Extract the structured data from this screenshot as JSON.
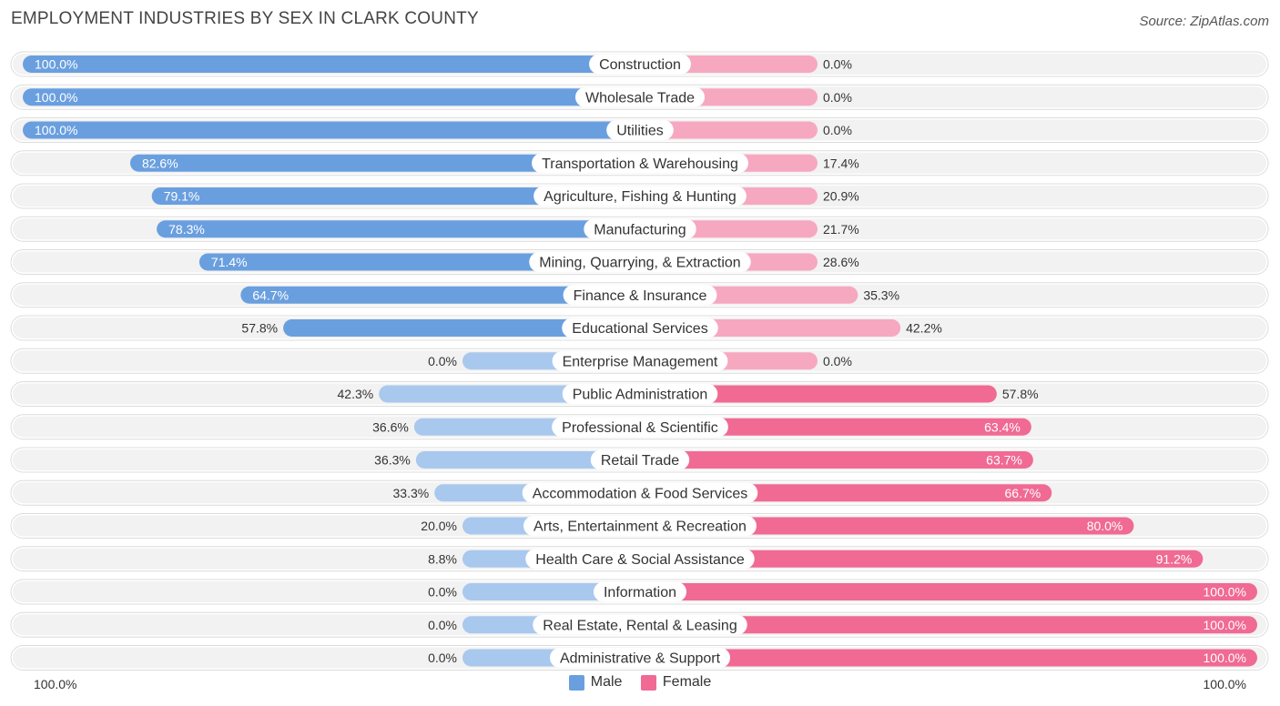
{
  "title": "EMPLOYMENT INDUSTRIES BY SEX IN CLARK COUNTY",
  "source": "Source: ZipAtlas.com",
  "colors": {
    "male_strong": "#6a9fdf",
    "male_light": "#a9c8ee",
    "female_strong": "#f06a94",
    "female_light": "#f7a8c1",
    "row_bg": "#f2f2f2"
  },
  "legend": {
    "male": "Male",
    "female": "Female"
  },
  "axis": {
    "left": "100.0%",
    "right": "100.0%"
  },
  "chart_data": {
    "type": "bar",
    "orientation": "horizontal-diverging",
    "title": "EMPLOYMENT INDUSTRIES BY SEX IN CLARK COUNTY",
    "xlabel": "",
    "ylabel": "",
    "xlim": [
      -100,
      100
    ],
    "categories": [
      "Construction",
      "Wholesale Trade",
      "Utilities",
      "Transportation & Warehousing",
      "Agriculture, Fishing & Hunting",
      "Manufacturing",
      "Mining, Quarrying, & Extraction",
      "Finance & Insurance",
      "Educational Services",
      "Enterprise Management",
      "Public Administration",
      "Professional & Scientific",
      "Retail Trade",
      "Accommodation & Food Services",
      "Arts, Entertainment & Recreation",
      "Health Care & Social Assistance",
      "Information",
      "Real Estate, Rental & Leasing",
      "Administrative & Support"
    ],
    "series": [
      {
        "name": "Male",
        "values": [
          100.0,
          100.0,
          100.0,
          82.6,
          79.1,
          78.3,
          71.4,
          64.7,
          57.8,
          0.0,
          42.3,
          36.6,
          36.3,
          33.3,
          20.0,
          8.8,
          0.0,
          0.0,
          0.0
        ]
      },
      {
        "name": "Female",
        "values": [
          0.0,
          0.0,
          0.0,
          17.4,
          20.9,
          21.7,
          28.6,
          35.3,
          42.2,
          0.0,
          57.8,
          63.4,
          63.7,
          66.7,
          80.0,
          91.2,
          100.0,
          100.0,
          100.0
        ]
      }
    ]
  }
}
